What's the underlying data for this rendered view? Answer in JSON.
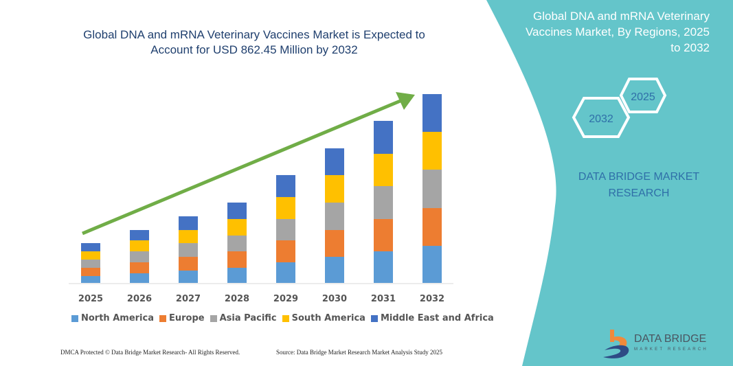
{
  "header": {
    "title_line1": "Global DNA and mRNA Veterinary Vaccines Market is Expected to",
    "title_line2": "Account for USD 862.45 Million by 2032"
  },
  "side_panel": {
    "title_line1": "Global DNA and mRNA Veterinary",
    "title_line2": "Vaccines Market, By Regions, 2025",
    "title_line3": "to 2032",
    "hex_start": "2025",
    "hex_end": "2032",
    "brand_line1": "DATA BRIDGE MARKET",
    "brand_line2": "RESEARCH",
    "panel_color": "#64c5ca"
  },
  "logo": {
    "name": "DATA BRIDGE",
    "sub": "MARKET RESEARCH"
  },
  "footer": {
    "left": "DMCA Protected © Data Bridge Market Research-  All Rights Reserved.",
    "right": "Source: Data Bridge Market Research  Market Analysis Study 2025"
  },
  "chart_data": {
    "type": "bar",
    "stacked": true,
    "title": "Global DNA and mRNA Veterinary Vaccines Market is Expected to Account for USD 862.45 Million by 2032",
    "categories": [
      "2025",
      "2026",
      "2027",
      "2028",
      "2029",
      "2030",
      "2031",
      "2032"
    ],
    "series": [
      {
        "name": "North America",
        "color": "#5b9bd5",
        "values": [
          31.4,
          43.9,
          56.4,
          69.0,
          94.1,
          119.2,
          144.3,
          169.3
        ]
      },
      {
        "name": "Europe",
        "color": "#ed7d31",
        "values": [
          37.6,
          50.2,
          62.7,
          75.3,
          100.4,
          122.3,
          147.4,
          172.5
        ]
      },
      {
        "name": "Asia Pacific",
        "color": "#a5a5a5",
        "values": [
          37.6,
          50.2,
          62.7,
          72.1,
          97.2,
          125.4,
          150.5,
          175.6
        ]
      },
      {
        "name": "South America",
        "color": "#ffc000",
        "values": [
          37.6,
          50.2,
          59.6,
          75.3,
          100.4,
          125.4,
          147.4,
          172.5
        ]
      },
      {
        "name": "Middle East and Africa",
        "color": "#4472c4",
        "values": [
          37.6,
          47.0,
          62.7,
          75.3,
          100.4,
          122.3,
          150.5,
          172.5
        ]
      }
    ],
    "ylim": [
      0,
      862.45
    ],
    "y_axis_visible": false,
    "grid": false,
    "legend": "bottom",
    "trend_arrow_color": "#70ad47"
  }
}
